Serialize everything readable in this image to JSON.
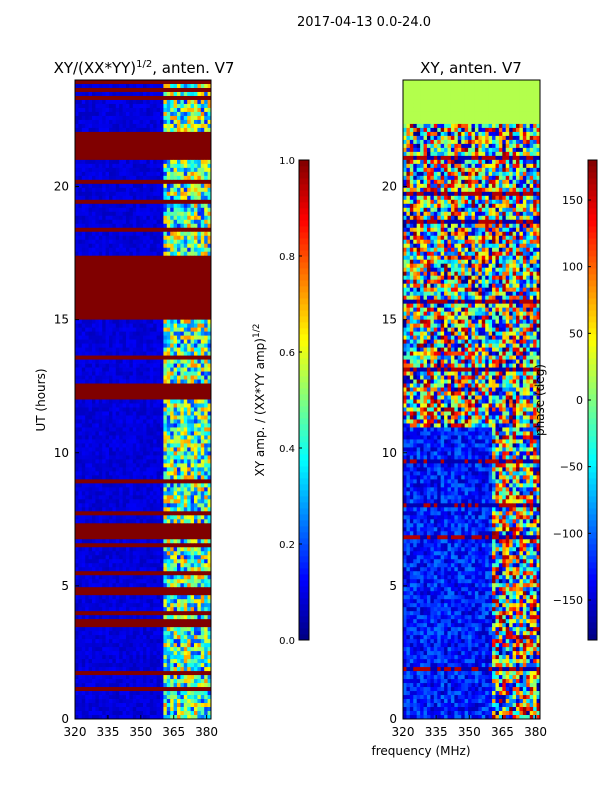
{
  "figure": {
    "suptitle": "2017-04-13 0.0-24.0",
    "xlabel": "frequency (MHz)"
  },
  "chart_data": [
    {
      "type": "heatmap",
      "title_base": "XY/(XX*YY)",
      "title_exp": "1/2",
      "title_suffix": ", anten. V7",
      "xlabel": "",
      "ylabel": "UT (hours)",
      "xlim": [
        320,
        382
      ],
      "ylim": [
        0,
        24
      ],
      "xticks": [
        320,
        335,
        350,
        365,
        380
      ],
      "yticks": [
        0,
        5,
        10,
        15,
        20
      ],
      "colorbar": {
        "label_base": "XY amp. / (XX*YY amp)",
        "label_exp": "1/2",
        "range": [
          0.0,
          1.0
        ],
        "ticks": [
          "0.0",
          "0.2",
          "0.4",
          "0.6",
          "0.8",
          "1.0"
        ],
        "colormap": "jet"
      },
      "background_value": 0.06,
      "active_band_mhz": [
        360,
        382
      ],
      "saturated_ut_bands": [
        [
          15.0,
          17.4
        ],
        [
          7.0,
          7.3
        ],
        [
          4.6,
          4.9
        ],
        [
          3.4,
          3.6
        ],
        [
          2.2,
          2.3
        ],
        [
          21.0,
          22.0
        ],
        [
          12.0,
          12.6
        ]
      ]
    },
    {
      "type": "heatmap",
      "title": "XY, anten. V7",
      "xlabel": "",
      "ylabel": "",
      "right_label": "phase (deg)",
      "xlim": [
        320,
        382
      ],
      "ylim": [
        0,
        24
      ],
      "xticks": [
        320,
        335,
        350,
        365,
        380
      ],
      "yticks": [
        0,
        5,
        10,
        15,
        20
      ],
      "colorbar": {
        "range": [
          -180,
          180
        ],
        "ticks": [
          "−150",
          "−100",
          "−50",
          "0",
          "50",
          "100",
          "150"
        ],
        "colormap": "jet"
      },
      "uniform_ut_bands": [
        [
          22.3,
          24.0
        ]
      ],
      "noisy_phase": true
    }
  ]
}
